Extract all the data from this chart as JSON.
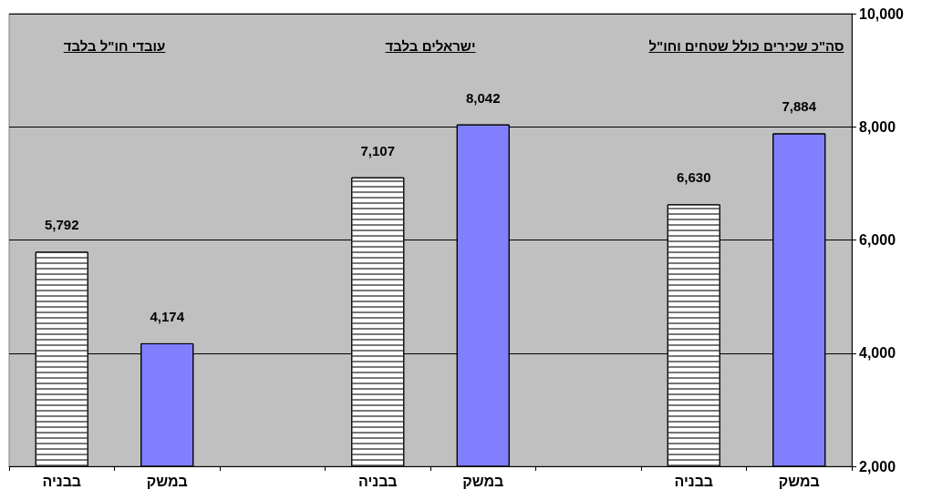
{
  "chart_data": {
    "type": "bar",
    "categories": [
      "בבניה",
      "במשק",
      null,
      "בבניה",
      "במשק",
      null,
      "בבניה",
      "במשק"
    ],
    "values": [
      5792,
      4174,
      null,
      7107,
      8042,
      null,
      6630,
      7884
    ],
    "colors": [
      "#ffffff",
      "#8080ff",
      null,
      "#ffffff",
      "#8080ff",
      null,
      "#ffffff",
      "#8080ff"
    ],
    "value_labels": [
      "5,792",
      "4,174",
      null,
      "7,107",
      "8,042",
      null,
      "6,630",
      "7,884"
    ],
    "annotations": [
      "עובדי חו\"ל בלבד",
      "ישראלים בלבד",
      "סה\"כ שכירים כולל שטחים וחו\"ל"
    ],
    "ylim": [
      2000,
      10000
    ],
    "yticks": [
      {
        "value": 2000,
        "label": "2,000"
      },
      {
        "value": 4000,
        "label": "4,000"
      },
      {
        "value": 6000,
        "label": "6,000"
      },
      {
        "value": 8000,
        "label": "8,000"
      },
      {
        "value": 10000,
        "label": "10,000"
      }
    ],
    "grid": "y"
  }
}
